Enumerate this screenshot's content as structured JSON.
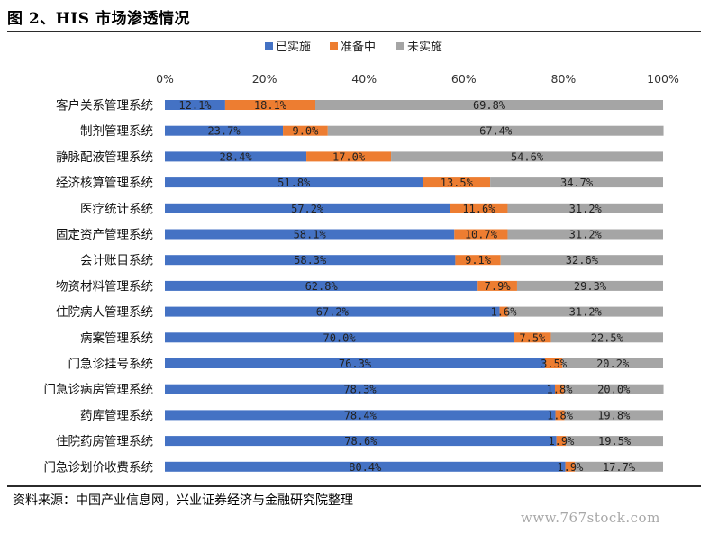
{
  "figure_title": "图 2、HIS 市场渗透情况",
  "source": "资料来源：中国产业信息网，兴业证券经济与金融研究院整理",
  "watermark": "www.767stock.com",
  "colors": {
    "implemented": "#4472c4",
    "preparing": "#ed7d31",
    "not_implemented": "#a5a5a5"
  },
  "chart_data": {
    "type": "bar",
    "orientation": "horizontal",
    "stacked": true,
    "title": "",
    "xlabel": "",
    "ylabel": "",
    "xlim": [
      0,
      100
    ],
    "x_tick_labels": [
      "0%",
      "20%",
      "40%",
      "60%",
      "80%",
      "100%"
    ],
    "legend_position": "top",
    "grid": false,
    "categories": [
      "客户关系管理系统",
      "制剂管理系统",
      "静脉配液管理系统",
      "经济核算管理系统",
      "医疗统计系统",
      "固定资产管理系统",
      "会计账目系统",
      "物资材料管理系统",
      "住院病人管理系统",
      "病案管理系统",
      "门急诊挂号系统",
      "门急诊病房管理系统",
      "药库管理系统",
      "住院药房管理系统",
      "门急诊划价收费系统"
    ],
    "series": [
      {
        "name": "已实施",
        "values": [
          12.1,
          23.7,
          28.4,
          51.8,
          57.2,
          58.1,
          58.3,
          62.8,
          67.2,
          70.0,
          76.3,
          78.3,
          78.4,
          78.6,
          80.4
        ],
        "labels": [
          "12.1%",
          "23.7%",
          "28.4%",
          "51.8%",
          "57.2%",
          "58.1%",
          "58.3%",
          "62.8%",
          "67.2%",
          "70.0%",
          "76.3%",
          "78.3%",
          "78.4%",
          "78.6%",
          "80.4%"
        ]
      },
      {
        "name": "准备中",
        "values": [
          18.1,
          9.0,
          17.0,
          13.5,
          11.6,
          10.7,
          9.1,
          7.9,
          1.6,
          7.5,
          3.5,
          1.8,
          1.8,
          1.9,
          1.9
        ],
        "labels": [
          "18.1%",
          "9.0%",
          "17.0%",
          "13.5%",
          "11.6%",
          "10.7%",
          "9.1%",
          "7.9%",
          "1.6%",
          "7.5%",
          "3.5%",
          "1.8%",
          "1.8%",
          "1.9%",
          "1.9%"
        ]
      },
      {
        "name": "未实施",
        "values": [
          69.8,
          67.4,
          54.6,
          34.7,
          31.2,
          31.2,
          32.6,
          29.3,
          31.2,
          22.5,
          20.2,
          20.0,
          19.8,
          19.5,
          17.7
        ],
        "labels": [
          "69.8%",
          "67.4%",
          "54.6%",
          "34.7%",
          "31.2%",
          "31.2%",
          "32.6%",
          "29.3%",
          "31.2%",
          "22.5%",
          "20.2%",
          "20.0%",
          "19.8%",
          "19.5%",
          "17.7%"
        ]
      }
    ]
  }
}
